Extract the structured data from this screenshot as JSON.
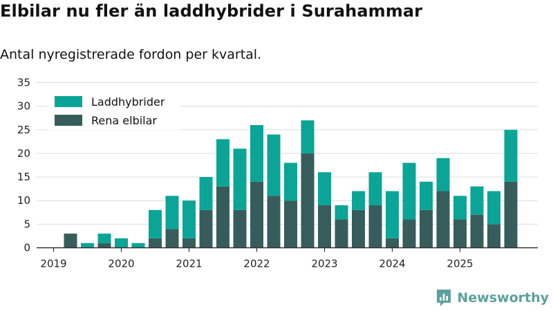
{
  "title": "Elbilar nu fler än laddhybrider i Surahammar",
  "subtitle": "Antal nyregistrerade fordon per kvartal.",
  "brand": {
    "name": "Newsworthy",
    "logo_icon": "newsworthy-logo-icon"
  },
  "chart_data": {
    "type": "bar",
    "stacked": true,
    "title": "Elbilar nu fler än laddhybrider i Surahammar",
    "subtitle": "Antal nyregistrerade fordon per kvartal.",
    "xlabel": "",
    "ylabel": "",
    "ylim": [
      0,
      35
    ],
    "yticks": [
      0,
      5,
      10,
      15,
      20,
      25,
      30,
      35
    ],
    "grid": true,
    "legend_position": "top-left",
    "x_tick_labels": [
      "2019",
      "2020",
      "2021",
      "2022",
      "2023",
      "2024",
      "2025"
    ],
    "categories": [
      "2019 Q1",
      "2019 Q2",
      "2019 Q3",
      "2019 Q4",
      "2020 Q1",
      "2020 Q2",
      "2020 Q3",
      "2020 Q4",
      "2021 Q1",
      "2021 Q2",
      "2021 Q3",
      "2021 Q4",
      "2022 Q1",
      "2022 Q2",
      "2022 Q3",
      "2022 Q4",
      "2023 Q1",
      "2023 Q2",
      "2023 Q3",
      "2023 Q4",
      "2024 Q1",
      "2024 Q2",
      "2024 Q3",
      "2024 Q4",
      "2025 Q1",
      "2025 Q2",
      "2025 Q3",
      "2025 Q4"
    ],
    "series": [
      {
        "name": "Rena elbilar",
        "color": "#365d5b",
        "values": [
          0,
          3,
          0,
          1,
          0,
          0,
          2,
          4,
          2,
          8,
          13,
          8,
          14,
          11,
          10,
          20,
          9,
          6,
          8,
          9,
          2,
          6,
          8,
          12,
          6,
          7,
          5,
          14
        ]
      },
      {
        "name": "Laddhybrider",
        "color": "#0aa597",
        "values": [
          0,
          0,
          1,
          2,
          2,
          1,
          6,
          7,
          8,
          7,
          10,
          13,
          12,
          13,
          8,
          7,
          7,
          3,
          4,
          7,
          10,
          12,
          6,
          7,
          5,
          6,
          7,
          11
        ]
      }
    ],
    "legend": [
      "Laddhybrider",
      "Rena elbilar"
    ]
  }
}
